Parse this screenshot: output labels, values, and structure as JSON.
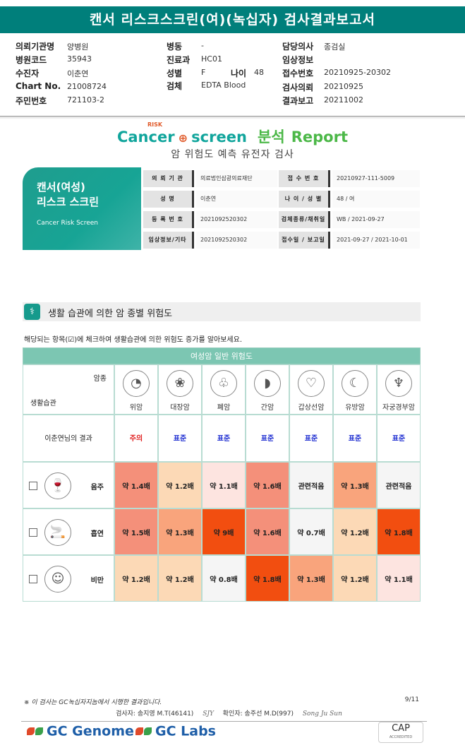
{
  "header": {
    "title": "캔서 리스크스크린(여)(녹십자) 검사결과보고서"
  },
  "info": {
    "col1": [
      {
        "label": "의뢰기관명",
        "value": "양병원"
      },
      {
        "label": "병원코드",
        "value": "35943"
      },
      {
        "label": "수진자",
        "value": "이춘연"
      },
      {
        "label": "Chart No.",
        "value": "21008724"
      },
      {
        "label": "주민번호",
        "value": "721103-2"
      }
    ],
    "col2": [
      {
        "label": "병동",
        "value": "-"
      },
      {
        "label": "진료과",
        "value": "HC01"
      },
      {
        "label": "성별",
        "value": "F"
      },
      {
        "label": "검체",
        "value": "EDTA Blood"
      }
    ],
    "age": {
      "label": "나이",
      "value": "48"
    },
    "col3": [
      {
        "label": "담당의사",
        "value": "종검실"
      },
      {
        "label": "임상정보",
        "value": ""
      },
      {
        "label": "접수번호",
        "value": "20210925-20302"
      },
      {
        "label": "검사의뢰",
        "value": "20210925"
      },
      {
        "label": "결과보고",
        "value": "20211002"
      }
    ]
  },
  "logo": {
    "cancer": "Cancer",
    "screen": "screen",
    "risk": "RISK",
    "report_kr": "분석",
    "report_en": "Report"
  },
  "subtitle": "암 위험도 예측 유전자 검사",
  "banner": {
    "line1": "캔서(여성)",
    "line2": "리스크 스크린",
    "en": "Cancer Risk Screen"
  },
  "patient": {
    "rows": [
      [
        {
          "k": "의 뢰 기 관",
          "v": "의료법인삼광의료재단"
        },
        {
          "k": "접 수 번 호",
          "v": "20210927-111-5009"
        }
      ],
      [
        {
          "k": "성          명",
          "v": "이춘연"
        },
        {
          "k": "나 이 / 성 별",
          "v": "48 / 여"
        }
      ],
      [
        {
          "k": "등 록 번 호",
          "v": "2021092520302"
        },
        {
          "k": "검체종류/채취일",
          "v": "WB / 2021-09-27"
        }
      ],
      [
        {
          "k": "임상정보/기타",
          "v": "2021092520302"
        },
        {
          "k": "접수일 / 보고일",
          "v": "2021-09-27 / 2021-10-01"
        }
      ]
    ]
  },
  "section": {
    "title": "생활 습관에 의한 암 종별 위험도",
    "note": "해당되는 항목(☑)에 체크하여 생활습관에 의한 위험도 증가를 알아보세요."
  },
  "grid": {
    "header": "여성암 일반 위험도",
    "corner_top": "암종",
    "corner_bottom": "생활습관",
    "cancers": [
      {
        "name": "위암",
        "icon": "stomach-icon",
        "glyph": "◔"
      },
      {
        "name": "대장암",
        "icon": "colon-icon",
        "glyph": "❀"
      },
      {
        "name": "폐암",
        "icon": "lung-icon",
        "glyph": "♧"
      },
      {
        "name": "간암",
        "icon": "liver-icon",
        "glyph": "◗"
      },
      {
        "name": "갑상선암",
        "icon": "thyroid-icon",
        "glyph": "♡"
      },
      {
        "name": "유방암",
        "icon": "breast-icon",
        "glyph": "☾"
      },
      {
        "name": "자궁경부암",
        "icon": "uterus-icon",
        "glyph": "♆"
      }
    ],
    "result_label": "이춘연님의 결과",
    "results": [
      {
        "text": "주의",
        "color": "#e02020"
      },
      {
        "text": "표준",
        "color": "#1a2ad0"
      },
      {
        "text": "표준",
        "color": "#1a2ad0"
      },
      {
        "text": "표준",
        "color": "#1a2ad0"
      },
      {
        "text": "표준",
        "color": "#1a2ad0"
      },
      {
        "text": "표준",
        "color": "#1a2ad0"
      },
      {
        "text": "표준",
        "color": "#1a2ad0"
      }
    ],
    "habits": [
      {
        "name": "음주",
        "icon": "alcohol-icon",
        "glyph": "🍷",
        "values": [
          {
            "t": "약 1.4배",
            "bg": "#f4907a"
          },
          {
            "t": "약 1.2배",
            "bg": "#fcd9b6"
          },
          {
            "t": "약 1.1배",
            "bg": "#fde4e0"
          },
          {
            "t": "약 1.6배",
            "bg": "#f4907a"
          },
          {
            "t": "관련적음",
            "bg": "#f5f5f5"
          },
          {
            "t": "약 1.3배",
            "bg": "#f9a47c"
          },
          {
            "t": "관련적음",
            "bg": "#f5f5f5"
          }
        ]
      },
      {
        "name": "흡연",
        "icon": "smoking-icon",
        "glyph": "🚬",
        "values": [
          {
            "t": "약 1.5배",
            "bg": "#f4907a"
          },
          {
            "t": "약 1.3배",
            "bg": "#f9a47c"
          },
          {
            "t": "약 9배",
            "bg": "#f24e10"
          },
          {
            "t": "약 1.6배",
            "bg": "#f4907a"
          },
          {
            "t": "약 0.7배",
            "bg": "#f5f5f5"
          },
          {
            "t": "약 1.2배",
            "bg": "#fcd9b6"
          },
          {
            "t": "약 1.8배",
            "bg": "#f24e10"
          }
        ]
      },
      {
        "name": "비만",
        "icon": "obesity-icon",
        "glyph": "☺",
        "values": [
          {
            "t": "약 1.2배",
            "bg": "#fcd9b6"
          },
          {
            "t": "약 1.2배",
            "bg": "#fcd9b6"
          },
          {
            "t": "약 0.8배",
            "bg": "#f5f5f5"
          },
          {
            "t": "약 1.8배",
            "bg": "#f24e10"
          },
          {
            "t": "약 1.3배",
            "bg": "#f9a47c"
          },
          {
            "t": "약 1.2배",
            "bg": "#fcd9b6"
          },
          {
            "t": "약 1.1배",
            "bg": "#fde4e0"
          }
        ]
      }
    ]
  },
  "footer": {
    "note": "※ 이 검사는 GC녹십자지놈에서 시행한 결과입니다.",
    "page": "9/11",
    "tester": "검사자: 송지영 M.T(46141)",
    "tester_sig": "SJY",
    "confirmer": "확인자: 송주선 M.D(997)",
    "confirmer_sig": "Song Ju Sun",
    "brand1": "GC Genome",
    "brand2": "GC Labs",
    "cap": "CAP",
    "cap_sub": "ACCREDITED"
  }
}
